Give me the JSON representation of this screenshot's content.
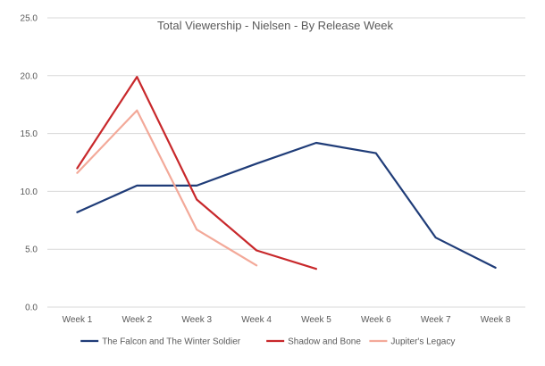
{
  "chart_data": {
    "type": "line",
    "title": "Total Viewership - Nielsen - By Release Week",
    "xlabel": "",
    "ylabel": "",
    "categories": [
      "Week 1",
      "Week 2",
      "Week 3",
      "Week 4",
      "Week 5",
      "Week 6",
      "Week 7",
      "Week 8"
    ],
    "y_tick_labels": [
      "0.0",
      "5.0",
      "10.0",
      "15.0",
      "20.0",
      "25.0"
    ],
    "ylim": [
      0,
      25
    ],
    "grid": true,
    "legend_position": "bottom",
    "series": [
      {
        "name": "The Falcon and The Winter Soldier",
        "color": "#1f3c78",
        "values": [
          8.2,
          10.5,
          10.5,
          12.4,
          14.2,
          13.3,
          6.0,
          3.4
        ]
      },
      {
        "name": "Shadow and Bone",
        "color": "#c8282b",
        "values": [
          12.0,
          19.9,
          9.3,
          4.9,
          3.3,
          null,
          null,
          null
        ]
      },
      {
        "name": "Jupiter's Legacy",
        "color": "#f3a999",
        "values": [
          11.6,
          17.0,
          6.7,
          3.6,
          null,
          null,
          null,
          null
        ]
      }
    ]
  }
}
